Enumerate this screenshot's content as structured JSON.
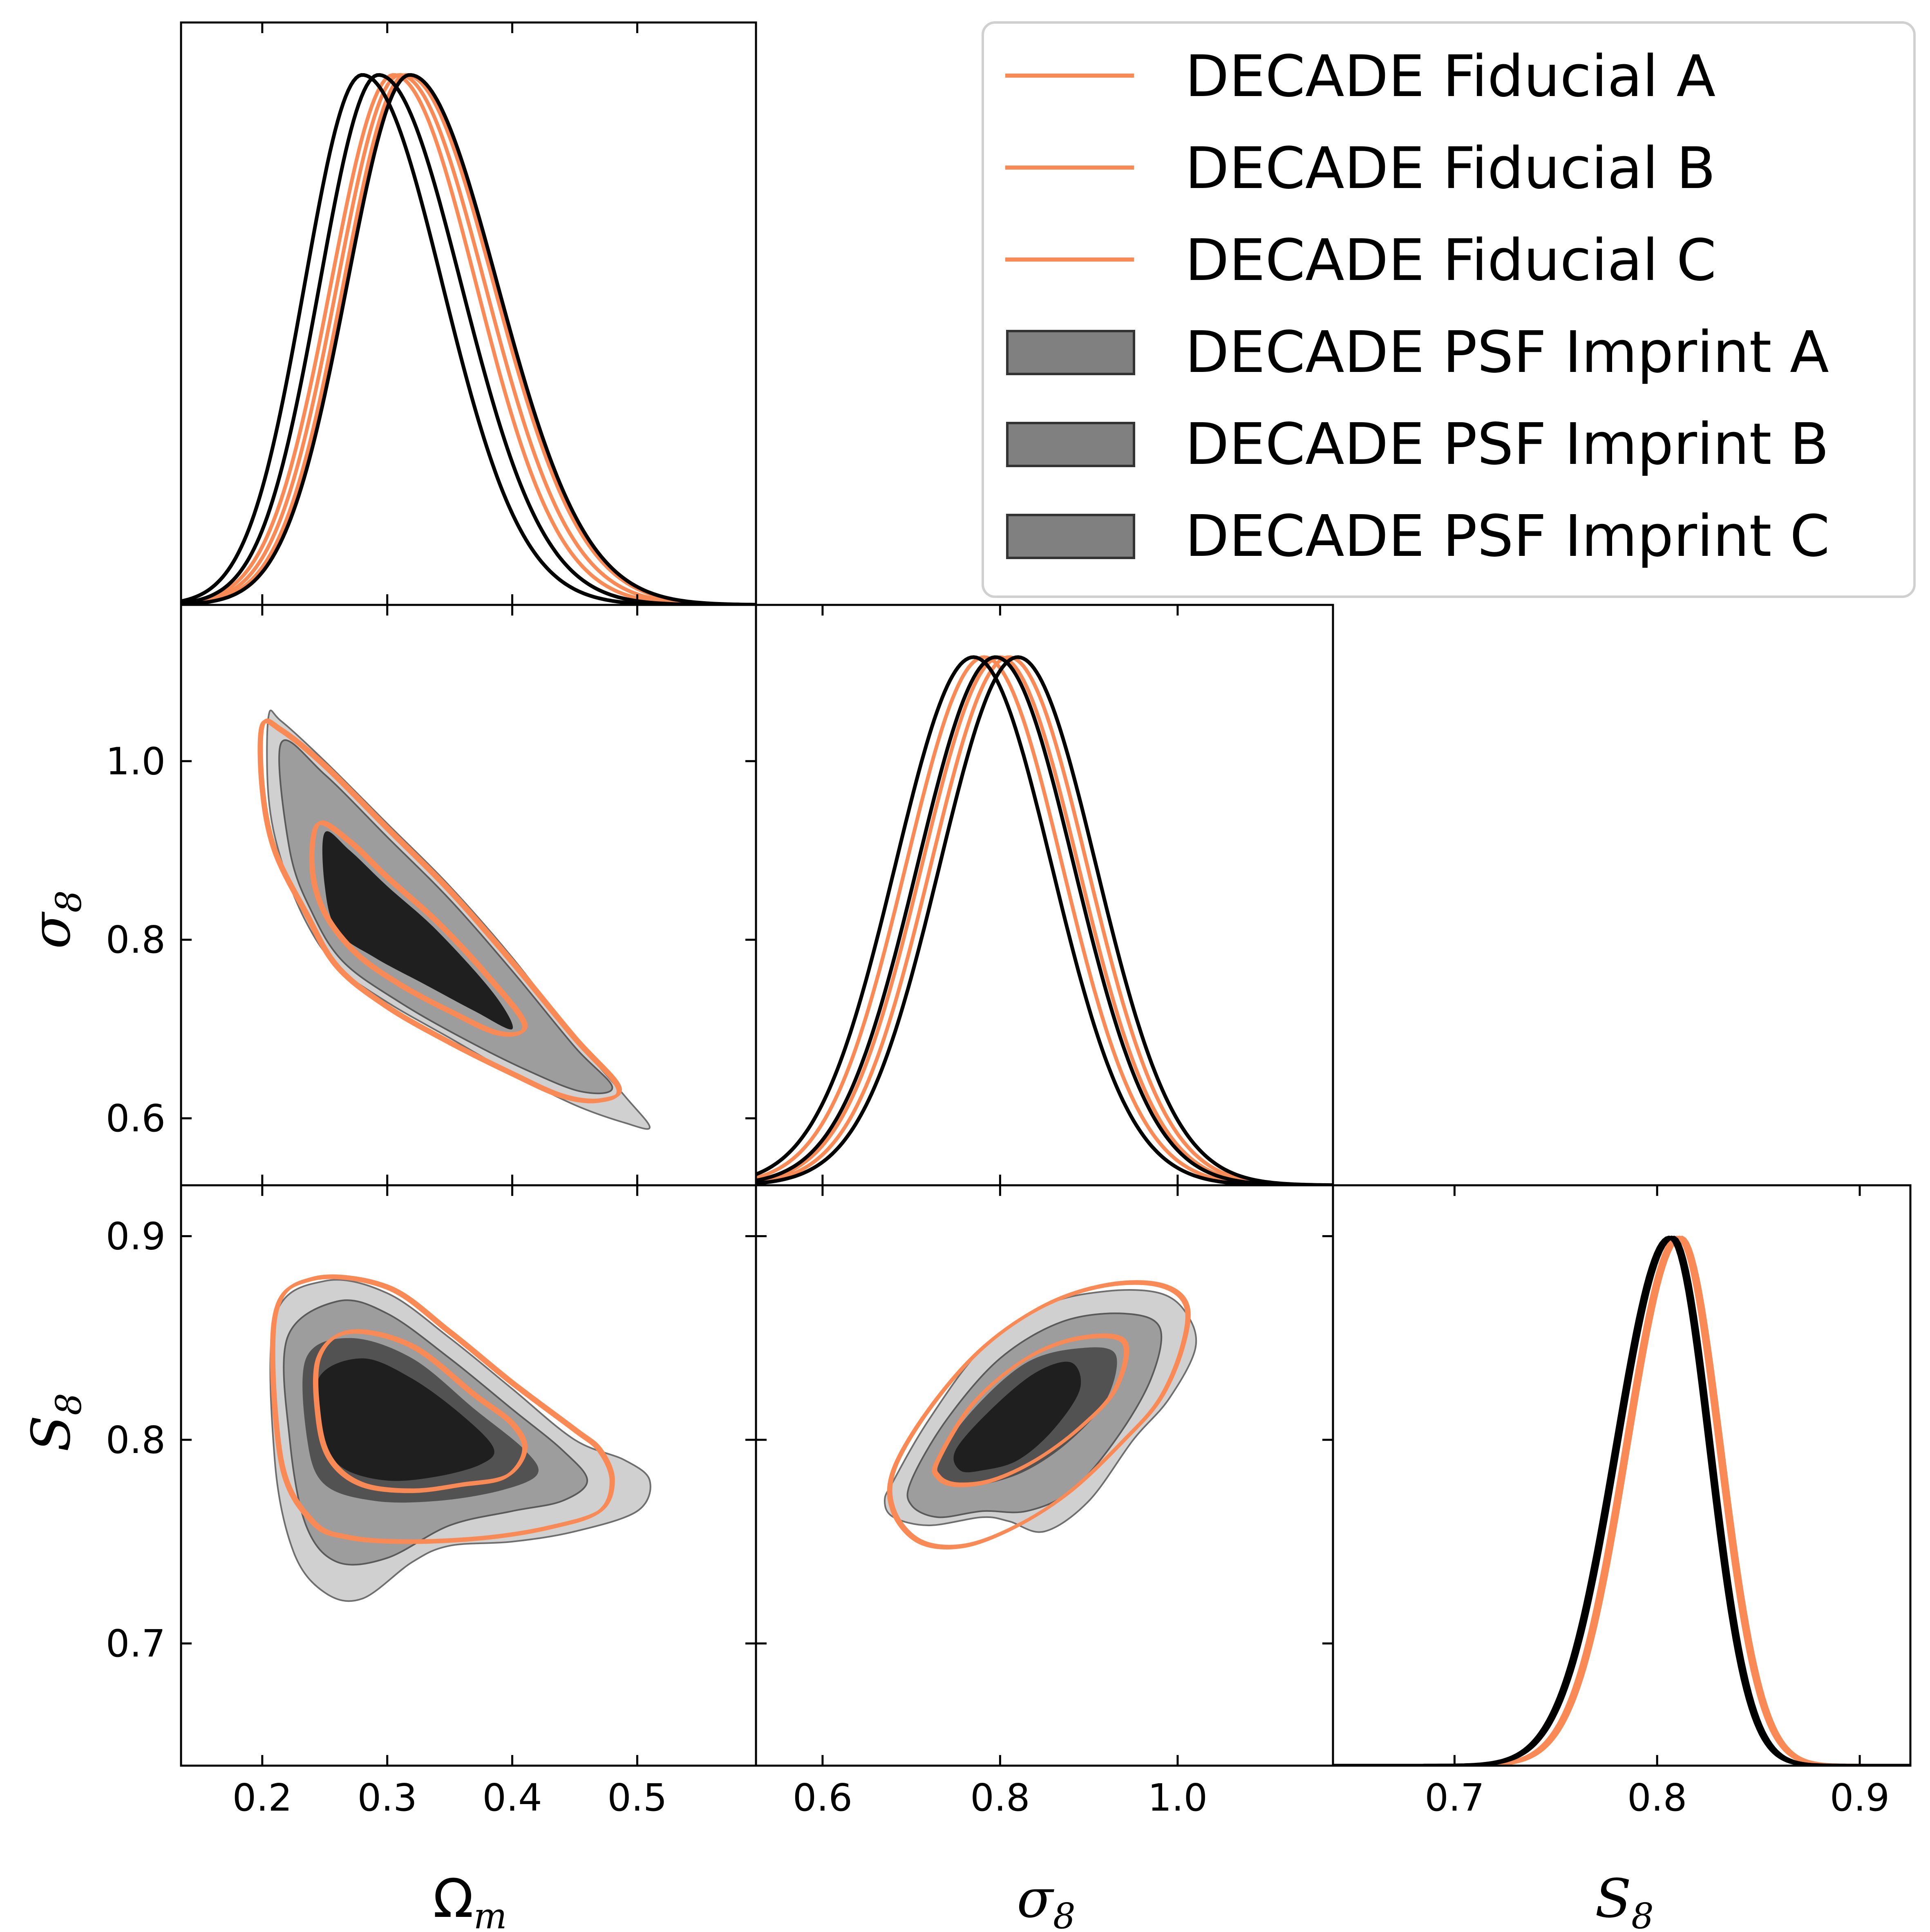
{
  "chart_data": {
    "type": "triangle-corner",
    "parameters": [
      {
        "key": "omega_m",
        "label": "Ω",
        "label_sub": "m",
        "range": [
          0.135,
          0.595
        ],
        "ticks": [
          0.2,
          0.3,
          0.4,
          0.5
        ],
        "tick_labels": [
          "0.2",
          "0.3",
          "0.4",
          "0.5"
        ]
      },
      {
        "key": "sigma_8",
        "label": "σ",
        "label_sub": "8",
        "range": [
          0.525,
          1.175
        ],
        "ticks": [
          0.6,
          0.8,
          1.0
        ],
        "tick_labels": [
          "0.6",
          "0.8",
          "1.0"
        ]
      },
      {
        "key": "S_8",
        "label": "S",
        "label_sub": "8",
        "range": [
          0.64,
          0.925
        ],
        "ticks": [
          0.7,
          0.8,
          0.9
        ],
        "tick_labels": [
          "0.7",
          "0.8",
          "0.9"
        ]
      }
    ],
    "legend": {
      "placement": "top-right",
      "entries": [
        {
          "label": "DECADE Fiducial A",
          "style": "line",
          "color": "#f98955"
        },
        {
          "label": "DECADE Fiducial B",
          "style": "line",
          "color": "#f98955"
        },
        {
          "label": "DECADE Fiducial C",
          "style": "line",
          "color": "#f98955"
        },
        {
          "label": "DECADE PSF Imprint A",
          "style": "patch",
          "color": "#808080"
        },
        {
          "label": "DECADE PSF Imprint B",
          "style": "patch",
          "color": "#808080"
        },
        {
          "label": "DECADE PSF Imprint C",
          "style": "patch",
          "color": "#808080"
        }
      ]
    },
    "colors": {
      "fiducial": "#f98955",
      "psf_imprint_line": "#000000",
      "psf_fill_outer": "#c8c8c8",
      "psf_fill_mid": "#8c8c8c",
      "psf_fill_inner": "#1f1f1f"
    },
    "marginals": {
      "omega_m": {
        "fiducial": [
          {
            "mean": 0.305,
            "sd_left": 0.05,
            "sd_right": 0.066
          },
          {
            "mean": 0.31,
            "sd_left": 0.05,
            "sd_right": 0.068
          },
          {
            "mean": 0.315,
            "sd_left": 0.05,
            "sd_right": 0.07
          }
        ],
        "psf_imprint": [
          {
            "mean": 0.28,
            "sd_left": 0.046,
            "sd_right": 0.064
          },
          {
            "mean": 0.293,
            "sd_left": 0.047,
            "sd_right": 0.066
          },
          {
            "mean": 0.318,
            "sd_left": 0.05,
            "sd_right": 0.07
          }
        ]
      },
      "sigma_8": {
        "fiducial": [
          {
            "mean": 0.782,
            "sd_left": 0.088,
            "sd_right": 0.088
          },
          {
            "mean": 0.8,
            "sd_left": 0.088,
            "sd_right": 0.088
          },
          {
            "mean": 0.81,
            "sd_left": 0.088,
            "sd_right": 0.088
          }
        ],
        "psf_imprint": [
          {
            "mean": 0.77,
            "sd_left": 0.088,
            "sd_right": 0.088
          },
          {
            "mean": 0.795,
            "sd_left": 0.088,
            "sd_right": 0.088
          },
          {
            "mean": 0.82,
            "sd_left": 0.088,
            "sd_right": 0.088
          }
        ]
      },
      "S_8": {
        "fiducial": [
          {
            "mean": 0.81,
            "sd_left": 0.026,
            "sd_right": 0.02
          },
          {
            "mean": 0.812,
            "sd_left": 0.026,
            "sd_right": 0.02
          },
          {
            "mean": 0.811,
            "sd_left": 0.026,
            "sd_right": 0.02
          }
        ],
        "psf_imprint": [
          {
            "mean": 0.806,
            "sd_left": 0.027,
            "sd_right": 0.019
          },
          {
            "mean": 0.808,
            "sd_left": 0.027,
            "sd_right": 0.019
          },
          {
            "mean": 0.807,
            "sd_left": 0.027,
            "sd_right": 0.019
          }
        ]
      }
    },
    "contours_2d": {
      "sigma8_vs_omegam": {
        "psf_outer": [
          [
            0.205,
            1.05
          ],
          [
            0.215,
            1.045
          ],
          [
            0.25,
            1.0
          ],
          [
            0.3,
            0.93
          ],
          [
            0.35,
            0.86
          ],
          [
            0.4,
            0.78
          ],
          [
            0.45,
            0.69
          ],
          [
            0.49,
            0.625
          ],
          [
            0.51,
            0.59
          ],
          [
            0.49,
            0.595
          ],
          [
            0.45,
            0.615
          ],
          [
            0.4,
            0.65
          ],
          [
            0.35,
            0.69
          ],
          [
            0.3,
            0.73
          ],
          [
            0.26,
            0.77
          ],
          [
            0.235,
            0.82
          ],
          [
            0.215,
            0.89
          ],
          [
            0.205,
            0.96
          ]
        ],
        "psf_mid": [
          [
            0.215,
            1.02
          ],
          [
            0.25,
            0.985
          ],
          [
            0.3,
            0.915
          ],
          [
            0.35,
            0.845
          ],
          [
            0.4,
            0.765
          ],
          [
            0.45,
            0.68
          ],
          [
            0.48,
            0.635
          ],
          [
            0.455,
            0.63
          ],
          [
            0.41,
            0.655
          ],
          [
            0.36,
            0.69
          ],
          [
            0.31,
            0.73
          ],
          [
            0.265,
            0.775
          ],
          [
            0.24,
            0.83
          ],
          [
            0.222,
            0.9
          ]
        ],
        "psf_inner": [
          [
            0.25,
            0.92
          ],
          [
            0.27,
            0.9
          ],
          [
            0.3,
            0.86
          ],
          [
            0.34,
            0.81
          ],
          [
            0.385,
            0.74
          ],
          [
            0.4,
            0.7
          ],
          [
            0.37,
            0.72
          ],
          [
            0.33,
            0.75
          ],
          [
            0.29,
            0.78
          ],
          [
            0.26,
            0.81
          ],
          [
            0.25,
            0.86
          ]
        ],
        "fiducial_outer": [
          [
            0.2,
            1.04
          ],
          [
            0.215,
            1.035
          ],
          [
            0.25,
            0.995
          ],
          [
            0.3,
            0.925
          ],
          [
            0.35,
            0.855
          ],
          [
            0.4,
            0.775
          ],
          [
            0.45,
            0.69
          ],
          [
            0.485,
            0.635
          ],
          [
            0.47,
            0.62
          ],
          [
            0.44,
            0.625
          ],
          [
            0.4,
            0.65
          ],
          [
            0.35,
            0.685
          ],
          [
            0.3,
            0.725
          ],
          [
            0.26,
            0.77
          ],
          [
            0.235,
            0.83
          ],
          [
            0.21,
            0.9
          ],
          [
            0.2,
            0.97
          ]
        ],
        "fiducial_inner": [
          [
            0.245,
            0.93
          ],
          [
            0.27,
            0.91
          ],
          [
            0.3,
            0.87
          ],
          [
            0.34,
            0.82
          ],
          [
            0.38,
            0.76
          ],
          [
            0.41,
            0.705
          ],
          [
            0.39,
            0.695
          ],
          [
            0.35,
            0.72
          ],
          [
            0.31,
            0.75
          ],
          [
            0.275,
            0.785
          ],
          [
            0.25,
            0.83
          ],
          [
            0.24,
            0.88
          ]
        ]
      },
      "S8_vs_omegam": {
        "psf_outer": [
          [
            0.21,
            0.86
          ],
          [
            0.25,
            0.878
          ],
          [
            0.3,
            0.872
          ],
          [
            0.35,
            0.85
          ],
          [
            0.4,
            0.825
          ],
          [
            0.45,
            0.8
          ],
          [
            0.49,
            0.79
          ],
          [
            0.51,
            0.78
          ],
          [
            0.5,
            0.765
          ],
          [
            0.45,
            0.755
          ],
          [
            0.4,
            0.75
          ],
          [
            0.35,
            0.748
          ],
          [
            0.32,
            0.74
          ],
          [
            0.28,
            0.722
          ],
          [
            0.25,
            0.725
          ],
          [
            0.225,
            0.745
          ],
          [
            0.21,
            0.79
          ]
        ],
        "psf_mid": [
          [
            0.22,
            0.85
          ],
          [
            0.26,
            0.868
          ],
          [
            0.3,
            0.862
          ],
          [
            0.35,
            0.84
          ],
          [
            0.4,
            0.815
          ],
          [
            0.44,
            0.795
          ],
          [
            0.46,
            0.78
          ],
          [
            0.44,
            0.77
          ],
          [
            0.4,
            0.765
          ],
          [
            0.35,
            0.758
          ],
          [
            0.3,
            0.742
          ],
          [
            0.26,
            0.74
          ],
          [
            0.235,
            0.758
          ],
          [
            0.222,
            0.8
          ]
        ],
        "psf_core": [
          [
            0.235,
            0.84
          ],
          [
            0.27,
            0.85
          ],
          [
            0.32,
            0.84
          ],
          [
            0.37,
            0.815
          ],
          [
            0.41,
            0.795
          ],
          [
            0.42,
            0.783
          ],
          [
            0.39,
            0.775
          ],
          [
            0.34,
            0.77
          ],
          [
            0.29,
            0.77
          ],
          [
            0.25,
            0.778
          ],
          [
            0.236,
            0.8
          ]
        ],
        "psf_inner": [
          [
            0.245,
            0.83
          ],
          [
            0.28,
            0.84
          ],
          [
            0.32,
            0.83
          ],
          [
            0.36,
            0.812
          ],
          [
            0.385,
            0.796
          ],
          [
            0.375,
            0.788
          ],
          [
            0.34,
            0.782
          ],
          [
            0.3,
            0.78
          ],
          [
            0.265,
            0.786
          ],
          [
            0.25,
            0.8
          ]
        ],
        "fiducial_outer": [
          [
            0.21,
            0.86
          ],
          [
            0.24,
            0.879
          ],
          [
            0.3,
            0.875
          ],
          [
            0.35,
            0.853
          ],
          [
            0.4,
            0.828
          ],
          [
            0.45,
            0.805
          ],
          [
            0.47,
            0.795
          ],
          [
            0.48,
            0.78
          ],
          [
            0.47,
            0.765
          ],
          [
            0.43,
            0.757
          ],
          [
            0.38,
            0.752
          ],
          [
            0.32,
            0.75
          ],
          [
            0.27,
            0.752
          ],
          [
            0.24,
            0.76
          ],
          [
            0.215,
            0.79
          ]
        ],
        "fiducial_inner": [
          [
            0.245,
            0.84
          ],
          [
            0.27,
            0.853
          ],
          [
            0.32,
            0.846
          ],
          [
            0.37,
            0.822
          ],
          [
            0.4,
            0.808
          ],
          [
            0.41,
            0.795
          ],
          [
            0.395,
            0.782
          ],
          [
            0.36,
            0.778
          ],
          [
            0.32,
            0.775
          ],
          [
            0.28,
            0.778
          ],
          [
            0.255,
            0.79
          ],
          [
            0.245,
            0.81
          ]
        ]
      },
      "S8_vs_sigma8": {
        "psf_outer": [
          [
            0.68,
            0.78
          ],
          [
            0.72,
            0.81
          ],
          [
            0.78,
            0.845
          ],
          [
            0.85,
            0.866
          ],
          [
            0.92,
            0.873
          ],
          [
            0.98,
            0.872
          ],
          [
            1.01,
            0.862
          ],
          [
            1.02,
            0.845
          ],
          [
            0.99,
            0.82
          ],
          [
            0.95,
            0.8
          ],
          [
            0.9,
            0.77
          ],
          [
            0.85,
            0.755
          ],
          [
            0.81,
            0.76
          ],
          [
            0.78,
            0.762
          ],
          [
            0.72,
            0.758
          ],
          [
            0.68,
            0.762
          ],
          [
            0.67,
            0.77
          ]
        ],
        "psf_mid": [
          [
            0.7,
            0.78
          ],
          [
            0.74,
            0.81
          ],
          [
            0.8,
            0.84
          ],
          [
            0.87,
            0.858
          ],
          [
            0.94,
            0.862
          ],
          [
            0.98,
            0.855
          ],
          [
            0.97,
            0.83
          ],
          [
            0.93,
            0.8
          ],
          [
            0.88,
            0.775
          ],
          [
            0.83,
            0.765
          ],
          [
            0.78,
            0.765
          ],
          [
            0.73,
            0.762
          ],
          [
            0.7,
            0.768
          ]
        ],
        "psf_core": [
          [
            0.73,
            0.79
          ],
          [
            0.77,
            0.815
          ],
          [
            0.83,
            0.838
          ],
          [
            0.89,
            0.845
          ],
          [
            0.93,
            0.842
          ],
          [
            0.92,
            0.82
          ],
          [
            0.88,
            0.8
          ],
          [
            0.83,
            0.785
          ],
          [
            0.78,
            0.778
          ],
          [
            0.74,
            0.778
          ]
        ],
        "psf_inner": [
          [
            0.75,
            0.795
          ],
          [
            0.79,
            0.815
          ],
          [
            0.84,
            0.833
          ],
          [
            0.88,
            0.838
          ],
          [
            0.89,
            0.825
          ],
          [
            0.86,
            0.805
          ],
          [
            0.82,
            0.79
          ],
          [
            0.78,
            0.785
          ],
          [
            0.755,
            0.785
          ]
        ],
        "fiducial_outer": [
          [
            0.68,
            0.785
          ],
          [
            0.72,
            0.815
          ],
          [
            0.78,
            0.845
          ],
          [
            0.85,
            0.866
          ],
          [
            0.92,
            0.876
          ],
          [
            0.98,
            0.876
          ],
          [
            1.01,
            0.866
          ],
          [
            1.005,
            0.845
          ],
          [
            0.98,
            0.82
          ],
          [
            0.94,
            0.8
          ],
          [
            0.88,
            0.775
          ],
          [
            0.82,
            0.758
          ],
          [
            0.76,
            0.748
          ],
          [
            0.71,
            0.75
          ],
          [
            0.68,
            0.765
          ]
        ],
        "fiducial_inner": [
          [
            0.73,
            0.79
          ],
          [
            0.77,
            0.818
          ],
          [
            0.83,
            0.84
          ],
          [
            0.89,
            0.85
          ],
          [
            0.94,
            0.848
          ],
          [
            0.93,
            0.825
          ],
          [
            0.89,
            0.806
          ],
          [
            0.84,
            0.79
          ],
          [
            0.79,
            0.78
          ],
          [
            0.75,
            0.778
          ],
          [
            0.73,
            0.782
          ]
        ]
      }
    }
  }
}
